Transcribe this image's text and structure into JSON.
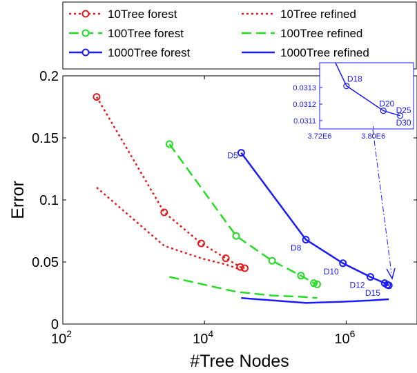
{
  "chart_data": {
    "type": "line",
    "xscale": "log",
    "xlim": [
      100,
      10000000
    ],
    "ylim": [
      0,
      0.2
    ],
    "xlabel": "#Tree Nodes",
    "ylabel": "Error",
    "grid": false,
    "legend_position": "top",
    "x_ticks": [
      {
        "value": 100,
        "base": "10",
        "exp": "2"
      },
      {
        "value": 10000,
        "base": "10",
        "exp": "4"
      },
      {
        "value": 1000000,
        "base": "10",
        "exp": "6"
      }
    ],
    "y_ticks": [
      {
        "value": 0,
        "label": "0"
      },
      {
        "value": 0.05,
        "label": "0.05"
      },
      {
        "value": 0.1,
        "label": "0.1"
      },
      {
        "value": 0.15,
        "label": "0.15"
      },
      {
        "value": 0.2,
        "label": "0.2"
      }
    ],
    "series": [
      {
        "name": "10Tree forest",
        "color": "#e41a1c",
        "dash": "3,4",
        "marker": true,
        "x": [
          300,
          2700,
          9000,
          20000,
          32000,
          37000
        ],
        "y": [
          0.183,
          0.09,
          0.065,
          0.053,
          0.046,
          0.045
        ]
      },
      {
        "name": "10Tree refined",
        "color": "#e41a1c",
        "dash": "3,4",
        "marker": false,
        "x": [
          300,
          2700,
          9000,
          20000,
          32000,
          37000
        ],
        "y": [
          0.11,
          0.063,
          0.053,
          0.048,
          0.044,
          0.043
        ]
      },
      {
        "name": "100Tree forest",
        "color": "#22dd22",
        "dash": "14,7",
        "marker": true,
        "x": [
          3200,
          28000,
          90000,
          230000,
          350000,
          390000
        ],
        "y": [
          0.145,
          0.071,
          0.051,
          0.039,
          0.033,
          0.032
        ]
      },
      {
        "name": "100Tree refined",
        "color": "#22dd22",
        "dash": "14,7",
        "marker": false,
        "x": [
          3200,
          28000,
          90000,
          230000,
          390000
        ],
        "y": [
          0.038,
          0.026,
          0.023,
          0.022,
          0.021
        ]
      },
      {
        "name": "1000Tree forest",
        "color": "#1a1aff",
        "dash": "",
        "marker": true,
        "x": [
          33000,
          270000,
          900000,
          2200000,
          3500000,
          3800000,
          4000000
        ],
        "y": [
          0.138,
          0.068,
          0.049,
          0.038,
          0.033,
          0.0316,
          0.0312
        ]
      },
      {
        "name": "1000Tree refined",
        "color": "#1a1aff",
        "dash": "",
        "marker": false,
        "x": [
          33000,
          270000,
          900000,
          2200000,
          4000000
        ],
        "y": [
          0.021,
          0.017,
          0.018,
          0.019,
          0.02
        ]
      }
    ],
    "annotations": [
      {
        "text": "D5",
        "x": 33000,
        "y": 0.138
      },
      {
        "text": "D8",
        "x": 270000,
        "y": 0.068
      },
      {
        "text": "D10",
        "x": 900000,
        "y": 0.049
      },
      {
        "text": "D12",
        "x": 2200000,
        "y": 0.038
      },
      {
        "text": "D15",
        "x": 3800000,
        "y": 0.0316
      }
    ],
    "inset": {
      "xlim": [
        3720000,
        3860000
      ],
      "ylim": [
        0.03105,
        0.03145
      ],
      "x_ticks": [
        {
          "value": 3720000,
          "label": "3.72E6"
        },
        {
          "value": 3800000,
          "label": "3.80E6"
        }
      ],
      "y_ticks": [
        {
          "value": 0.0311,
          "label": "0.0311"
        },
        {
          "value": 0.0312,
          "label": "0.0312"
        },
        {
          "value": 0.0313,
          "label": "0.0313"
        }
      ],
      "points": [
        {
          "label": "D18",
          "x": 3760000,
          "y": 0.03131
        },
        {
          "label": "D20",
          "x": 3815000,
          "y": 0.03116
        },
        {
          "label": "D25",
          "x": 3840000,
          "y": 0.03113
        },
        {
          "label": "D30",
          "x": 3840000,
          "y": 0.03113
        }
      ],
      "line_start": {
        "x": 3740000,
        "y": 0.03148
      },
      "color": "#1a1aff"
    }
  }
}
